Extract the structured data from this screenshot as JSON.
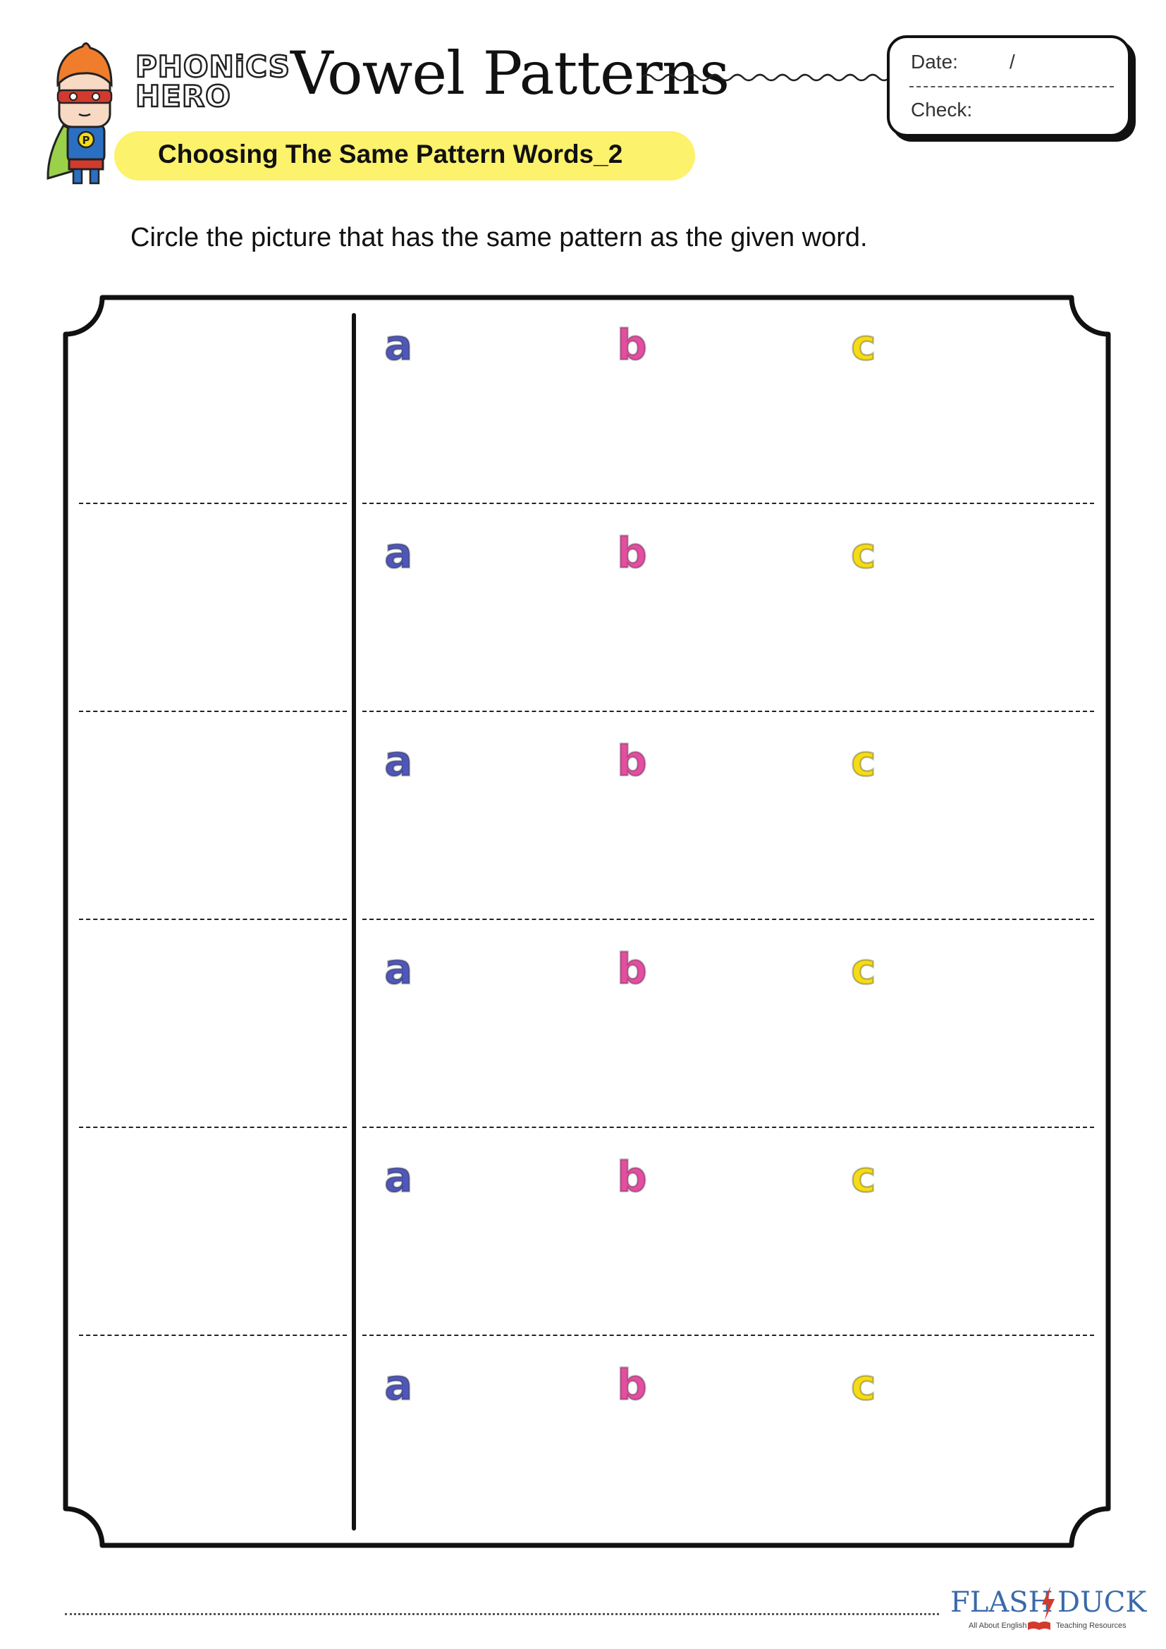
{
  "header": {
    "logo_line1": "PHONiCS",
    "logo_line2": "HERO",
    "title": "Vowel Patterns",
    "subtitle": "Choosing The Same Pattern Words_2"
  },
  "date_box": {
    "date_label": "Date:",
    "date_separator": "/",
    "check_label": "Check:"
  },
  "instruction": "Circle the picture that has the same pattern as the given word.",
  "rows": [
    {
      "options": [
        "a",
        "b",
        "c"
      ]
    },
    {
      "options": [
        "a",
        "b",
        "c"
      ]
    },
    {
      "options": [
        "a",
        "b",
        "c"
      ]
    },
    {
      "options": [
        "a",
        "b",
        "c"
      ]
    },
    {
      "options": [
        "a",
        "b",
        "c"
      ]
    },
    {
      "options": [
        "a",
        "b",
        "c"
      ]
    }
  ],
  "colors": {
    "option_a": "#4f58b7",
    "option_b": "#e24fa0",
    "option_c": "#f5dc16",
    "highlight": "#fcf26b"
  },
  "footer": {
    "brand_left": "FLASH",
    "brand_right": "DUCK",
    "tagline_left": "All About English",
    "tagline_right": "Teaching Resources"
  }
}
